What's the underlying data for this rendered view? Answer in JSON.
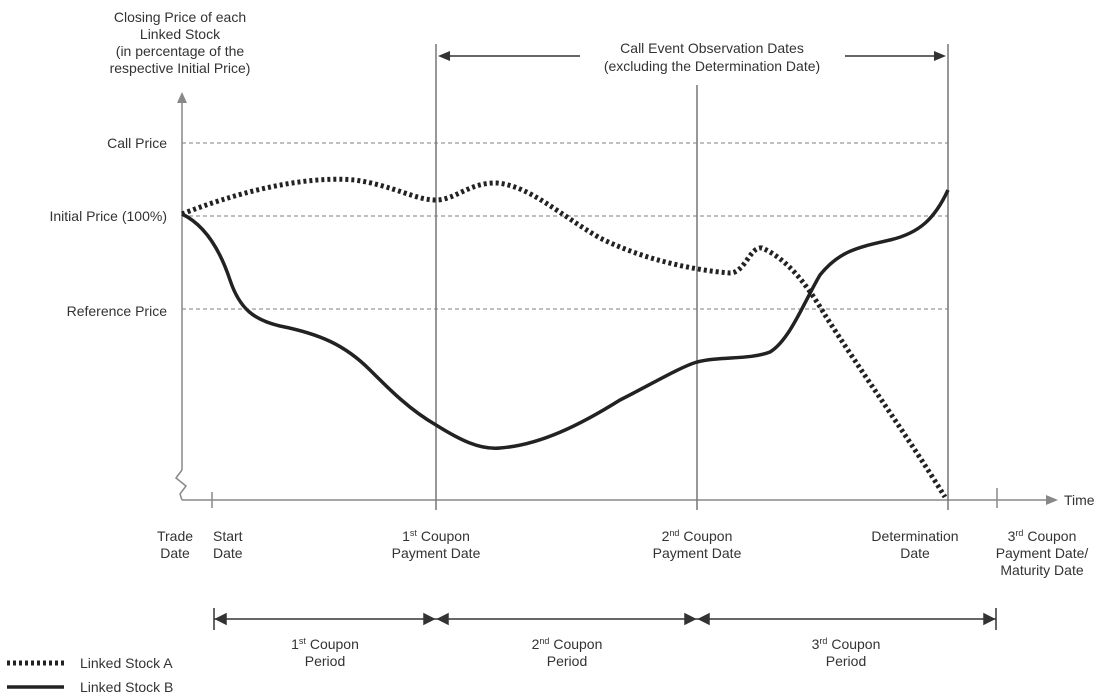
{
  "y_axis": {
    "title": "Closing Price of each\nLinked Stock\n(in percentage of the\nrespective Initial Price)",
    "levels": [
      {
        "key": "call",
        "label": "Call Price"
      },
      {
        "key": "initial",
        "label": "Initial Price (100%)"
      },
      {
        "key": "reference",
        "label": "Reference Price"
      }
    ]
  },
  "x_axis": {
    "label": "Time"
  },
  "observation_banner": {
    "line1": "Call Event Observation Dates",
    "line2": "(excluding the Determination Date)"
  },
  "dates": {
    "trade": "Trade\nDate",
    "start": "Start\nDate",
    "coupon1": {
      "num": "1",
      "sup": "st",
      "rest": " Coupon",
      "line2": "Payment Date"
    },
    "coupon2": {
      "num": "2",
      "sup": "nd",
      "rest": " Coupon",
      "line2": "Payment Date"
    },
    "determination": "Determination\nDate",
    "coupon3": {
      "num": "3",
      "sup": "rd",
      "rest": " Coupon",
      "line2": "Payment Date/",
      "line3": "Maturity Date"
    }
  },
  "periods": [
    {
      "num": "1",
      "sup": "st",
      "rest": " Coupon",
      "line2": "Period"
    },
    {
      "num": "2",
      "sup": "nd",
      "rest": " Coupon",
      "line2": "Period"
    },
    {
      "num": "3",
      "sup": "rd",
      "rest": " Coupon",
      "line2": "Period"
    }
  ],
  "legend": [
    {
      "style": "dotted",
      "label": "Linked Stock A"
    },
    {
      "style": "solid",
      "label": "Linked Stock B"
    }
  ],
  "colors": {
    "line": "#222222",
    "guide": "#777777",
    "reference": "#aaaaaa"
  }
}
